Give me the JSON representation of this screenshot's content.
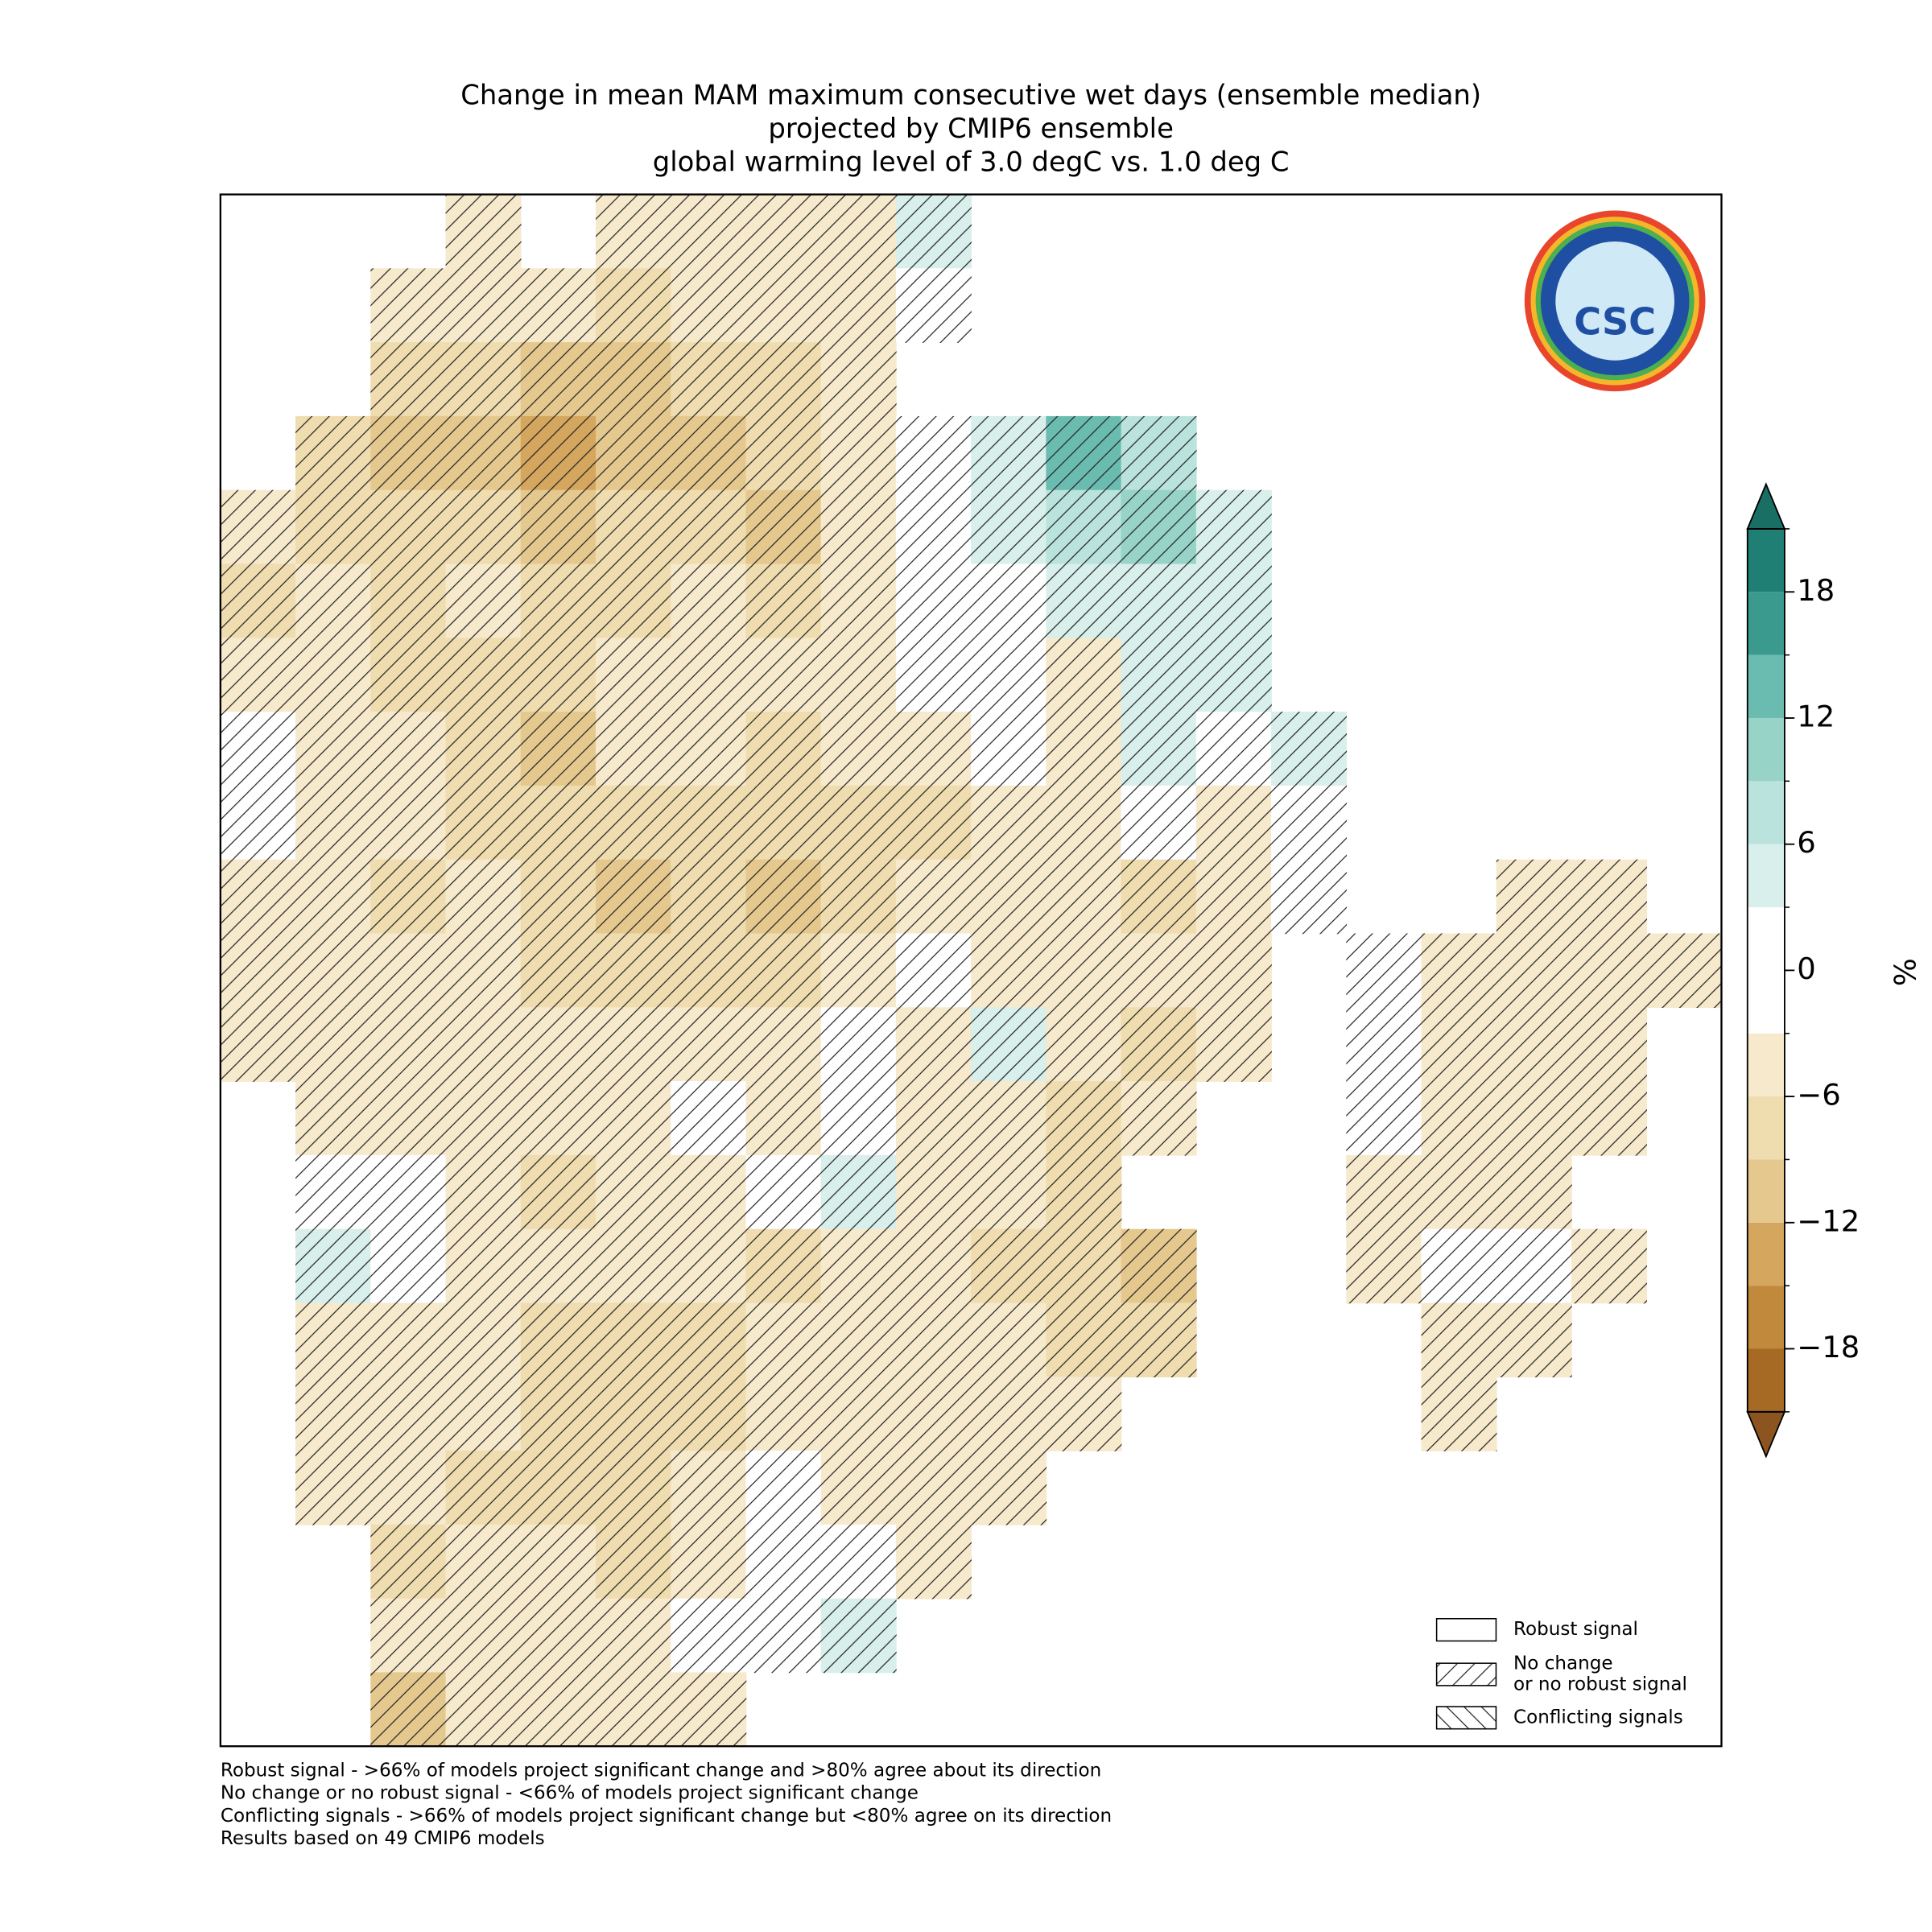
{
  "chart_data": {
    "type": "gridmap",
    "title": [
      "Change in mean MAM maximum consecutive wet days (ensemble median)",
      "projected by CMIP6 ensemble",
      "global warming level of 3.0 degC vs. 1.0 deg C"
    ],
    "colorbar": {
      "label": "%",
      "lim": [
        -21,
        21
      ],
      "levels": [
        -21,
        -18,
        -15,
        -12,
        -9,
        -6,
        -3,
        0,
        3,
        6,
        9,
        12,
        15,
        18,
        21
      ],
      "colors": [
        "#a66a24",
        "#c0893c",
        "#d4a65e",
        "#e5c88e",
        "#efdcaf",
        "#f6e9cc",
        "#ffffff",
        "#ffffff",
        "#d8efeb",
        "#b9e3dc",
        "#97d3c7",
        "#6bbcb0",
        "#3a9a8e",
        "#1f7f74"
      ],
      "extend_colors": [
        "#8c5520",
        "#1a6f65"
      ],
      "ticks": [
        {
          "value": -18,
          "label": "−18"
        },
        {
          "value": -12,
          "label": "−12"
        },
        {
          "value": -6,
          "label": "−6"
        },
        0,
        6,
        12,
        18
      ]
    },
    "grid": [
      [
        null,
        null,
        null,
        -4,
        null,
        -5,
        -5,
        -5,
        -4,
        4,
        null,
        null,
        null,
        null,
        null,
        null,
        null,
        null,
        null,
        null
      ],
      [
        null,
        null,
        -5,
        -6,
        -5,
        -7,
        -6,
        -6,
        -4,
        0,
        null,
        null,
        null,
        null,
        null,
        null,
        null,
        null,
        null,
        null
      ],
      [
        null,
        null,
        -7,
        -9,
        -12,
        -11,
        -8,
        -7,
        -4,
        null,
        null,
        null,
        null,
        null,
        null,
        null,
        null,
        null,
        null,
        null
      ],
      [
        null,
        -7,
        -10,
        -12,
        -15,
        -12,
        -10,
        -8,
        -4,
        0,
        4,
        12,
        8,
        null,
        null,
        null,
        null,
        null,
        null,
        null
      ],
      [
        -6,
        -8,
        -8,
        -9,
        -10,
        -9,
        -7,
        -12,
        -4,
        0,
        4,
        7,
        9,
        4,
        null,
        null,
        null,
        null,
        null,
        null
      ],
      [
        -8,
        -6,
        -7,
        -6,
        -7,
        -7,
        -6,
        -7,
        -4,
        0,
        0,
        4,
        4,
        4,
        null,
        null,
        null,
        null,
        null,
        null
      ],
      [
        -5,
        -5,
        -7,
        -9,
        -7,
        -6,
        -5,
        -6,
        -4,
        0,
        0,
        -4,
        4,
        4,
        null,
        null,
        null,
        null,
        null,
        null
      ],
      [
        0,
        -6,
        -5,
        -7,
        -10,
        -6,
        -5,
        -8,
        -6,
        -4,
        0,
        -4,
        4,
        0,
        4,
        null,
        null,
        null,
        null,
        null
      ],
      [
        0,
        -5,
        -6,
        -8,
        -7,
        -7,
        -9,
        -8,
        -7,
        -7,
        -6,
        -5,
        0,
        -4,
        0,
        null,
        null,
        null,
        null,
        null
      ],
      [
        -5,
        -6,
        -7,
        -5,
        -7,
        -10,
        -9,
        -11,
        -7,
        -6,
        -6,
        -6,
        -7,
        -5,
        0,
        null,
        null,
        -4,
        -4,
        null
      ],
      [
        -5,
        -5,
        -6,
        -6,
        -8,
        -7,
        -8,
        -7,
        -6,
        0,
        -5,
        -6,
        -6,
        -4,
        null,
        0,
        -4,
        -5,
        -4,
        -4
      ],
      [
        -4,
        -5,
        -6,
        -6,
        -5,
        -5,
        -5,
        -4,
        0,
        -5,
        4,
        -6,
        -7,
        -5,
        null,
        0,
        -4,
        -4,
        -4,
        null
      ],
      [
        null,
        -5,
        -6,
        -4,
        -6,
        -6,
        0,
        -4,
        0,
        -5,
        -4,
        -7,
        -6,
        null,
        null,
        0,
        -4,
        -5,
        -4,
        null
      ],
      [
        null,
        0,
        0,
        -6,
        -7,
        -6,
        -4,
        0,
        4,
        -4,
        -6,
        -7,
        null,
        null,
        null,
        -5,
        -4,
        -5,
        null,
        null
      ],
      [
        null,
        4,
        0,
        -6,
        -6,
        -6,
        -5,
        -7,
        -4,
        -6,
        -8,
        -9,
        -12,
        null,
        null,
        -5,
        0,
        0,
        -4,
        null
      ],
      [
        null,
        -4,
        -5,
        -6,
        -7,
        -8,
        -7,
        -5,
        -6,
        -5,
        -6,
        -7,
        -9,
        null,
        null,
        null,
        -4,
        -4,
        null,
        null
      ],
      [
        null,
        -6,
        -5,
        -6,
        -7,
        -9,
        -7,
        -4,
        -5,
        -4,
        -5,
        -5,
        null,
        null,
        null,
        null,
        -4,
        null,
        null,
        null
      ],
      [
        null,
        -5,
        -6,
        -7,
        -7,
        -8,
        -5,
        0,
        -4,
        -4,
        -4,
        null,
        null,
        null,
        null,
        null,
        null,
        null,
        null,
        null
      ],
      [
        null,
        null,
        -7,
        -6,
        -6,
        -7,
        -5,
        0,
        0,
        -4,
        null,
        null,
        null,
        null,
        null,
        null,
        null,
        null,
        null,
        null
      ],
      [
        null,
        null,
        -5,
        -6,
        -4,
        -5,
        0,
        0,
        4,
        null,
        null,
        null,
        null,
        null,
        null,
        null,
        null,
        null,
        null,
        null
      ],
      [
        null,
        null,
        -10,
        -6,
        -5,
        -4,
        -4,
        null,
        null,
        null,
        null,
        null,
        null,
        null,
        null,
        null,
        null,
        null,
        null,
        null
      ]
    ],
    "legend": [
      [
        "Robust signal"
      ],
      [
        "No change",
        "or no robust signal"
      ],
      [
        "Conflicting signals"
      ]
    ],
    "logo_text": "CSC",
    "footnotes": [
      "Robust signal - >66% of models project significant change and >80% agree about its direction",
      "No change or no robust signal - <66% of models project significant change",
      "Conflicting signals - >66% of models project significant change but <80% agree on its direction",
      "Results based on 49 CMIP6 models"
    ]
  }
}
